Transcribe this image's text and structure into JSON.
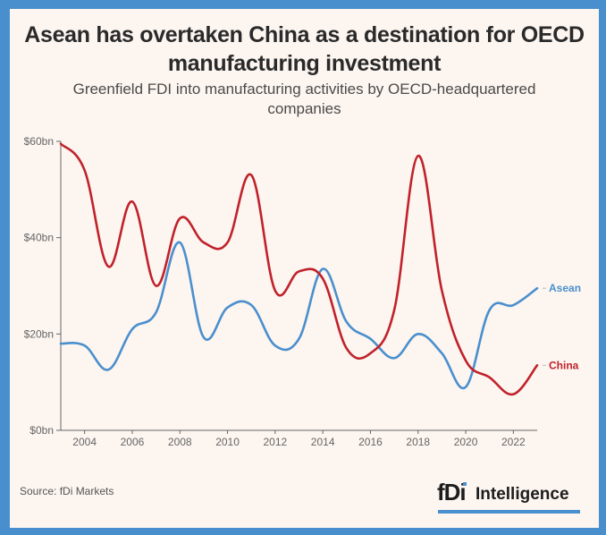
{
  "title": "Asean has overtaken China as a destination for OECD manufacturing investment",
  "subtitle": "Greenfield FDI into manufacturing activities by OECD-headquartered companies",
  "source": "Source: fDi Markets",
  "logo": {
    "mark": "fDi",
    "text": "Intelligence"
  },
  "colors": {
    "frame": "#4a8fcd",
    "background": "#fcf5f0",
    "asean": "#4a8fcd",
    "china": "#c0222a"
  },
  "chart_data": {
    "type": "line",
    "title": "Asean has overtaken China as a destination for OECD manufacturing investment",
    "subtitle": "Greenfield FDI into manufacturing activities by OECD-headquartered companies",
    "xlabel": "",
    "ylabel": "",
    "x": [
      2003,
      2004,
      2005,
      2006,
      2007,
      2008,
      2009,
      2010,
      2011,
      2012,
      2013,
      2014,
      2015,
      2016,
      2017,
      2018,
      2019,
      2020,
      2021,
      2022,
      2023
    ],
    "xlim": [
      2003,
      2023
    ],
    "ylim": [
      0,
      60
    ],
    "x_ticks": [
      2004,
      2006,
      2008,
      2010,
      2012,
      2014,
      2016,
      2018,
      2020,
      2022
    ],
    "x_tick_labels": [
      "2004",
      "2006",
      "2008",
      "2010",
      "2012",
      "2014",
      "2016",
      "2018",
      "2020",
      "2022"
    ],
    "y_ticks": [
      0,
      20,
      40,
      60
    ],
    "y_tick_labels": [
      "$0bn",
      "$20bn",
      "$40bn",
      "$60bn"
    ],
    "grid": false,
    "legend": "end-of-line labels (right)",
    "series": [
      {
        "name": "Asean",
        "color": "#4a8fcd",
        "values": [
          18,
          17.6,
          12.6,
          21,
          24.5,
          39,
          19.3,
          25.5,
          26,
          17.6,
          19,
          33.5,
          22.5,
          19,
          15,
          20,
          16,
          9,
          25,
          26,
          29.5
        ]
      },
      {
        "name": "China",
        "color": "#c0222a",
        "values": [
          59.5,
          54,
          34,
          47.5,
          30,
          44,
          39,
          39,
          53,
          29,
          33,
          31.5,
          17,
          16,
          25,
          57,
          29,
          14.5,
          11,
          7.5,
          13.5
        ]
      }
    ]
  }
}
